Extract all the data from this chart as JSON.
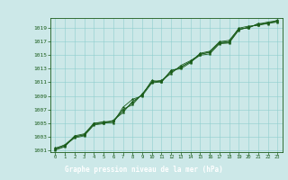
{
  "title": "Graphe pression niveau de la mer (hPa)",
  "bg_color": "#cce8e8",
  "title_bg_color": "#1a6b1a",
  "title_text_color": "#ffffff",
  "grid_color": "#8ecece",
  "line_color": "#1a5c1a",
  "marker_color": "#1a5c1a",
  "tick_color": "#1a5c1a",
  "spine_color": "#1a5c1a",
  "x_min": 0,
  "x_max": 23,
  "y_min": 1001,
  "y_max": 1020,
  "y_ticks": [
    1001,
    1003,
    1005,
    1007,
    1009,
    1011,
    1013,
    1015,
    1017,
    1019
  ],
  "x_ticks": [
    0,
    1,
    2,
    3,
    4,
    5,
    6,
    7,
    8,
    9,
    10,
    11,
    12,
    13,
    14,
    15,
    16,
    17,
    18,
    19,
    20,
    21,
    22,
    23
  ],
  "lines": [
    [
      1001.2,
      1001.8,
      1003.0,
      1003.2,
      1004.8,
      1005.0,
      1005.0,
      1007.3,
      1008.5,
      1009.0,
      1010.9,
      1011.1,
      1012.5,
      1013.3,
      1014.0,
      1015.0,
      1015.2,
      1016.7,
      1016.8,
      1018.7,
      1019.2,
      1019.5,
      1019.8,
      1020.0
    ],
    [
      1001.0,
      1001.5,
      1003.1,
      1003.4,
      1004.9,
      1005.2,
      1005.2,
      1006.8,
      1008.0,
      1009.2,
      1011.1,
      1011.3,
      1012.3,
      1013.5,
      1014.2,
      1015.1,
      1015.5,
      1016.9,
      1017.0,
      1019.0,
      1019.3,
      1019.4,
      1019.7,
      1019.9
    ],
    [
      1001.1,
      1001.6,
      1002.9,
      1003.3,
      1005.0,
      1005.1,
      1005.3,
      1007.0,
      1007.7,
      1009.3,
      1011.0,
      1011.2,
      1012.7,
      1013.2,
      1014.1,
      1015.2,
      1015.4,
      1016.8,
      1016.9,
      1018.8,
      1019.1,
      1019.6,
      1019.9,
      1020.1
    ],
    [
      1001.3,
      1001.7,
      1002.8,
      1003.1,
      1004.7,
      1004.9,
      1005.4,
      1006.5,
      1008.2,
      1009.1,
      1011.3,
      1011.0,
      1012.8,
      1013.0,
      1013.9,
      1015.3,
      1015.6,
      1017.0,
      1017.2,
      1018.9,
      1019.0,
      1019.7,
      1019.6,
      1020.2
    ]
  ]
}
